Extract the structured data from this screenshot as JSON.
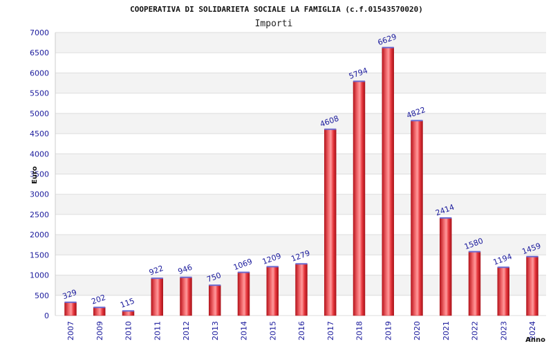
{
  "chart_data": {
    "type": "bar",
    "title": "COOPERATIVA DI SOLIDARIETA SOCIALE LA FAMIGLIA (c.f.01543570020)",
    "subtitle": "Importi",
    "xlabel": "Anno",
    "ylabel": "Euro",
    "ylim": [
      0,
      7000
    ],
    "yticks": [
      0,
      500,
      1000,
      1500,
      2000,
      2500,
      3000,
      3500,
      4000,
      4500,
      5000,
      5500,
      6000,
      6500,
      7000
    ],
    "categories": [
      "2007",
      "2009",
      "2010",
      "2011",
      "2012",
      "2013",
      "2014",
      "2015",
      "2016",
      "2017",
      "2018",
      "2019",
      "2020",
      "2021",
      "2022",
      "2023",
      "2024"
    ],
    "values": [
      329,
      202,
      115,
      922,
      946,
      750,
      1069,
      1209,
      1279,
      4608,
      5794,
      6629,
      4822,
      2414,
      1580,
      1194,
      1459
    ],
    "grid": true,
    "legend": "none",
    "colors": {
      "bar_main": "#e8393f",
      "bar_edge": "#b01e24",
      "bar_cap": "#6a6ad0",
      "label_text": "#1a1a9c",
      "band_alt": "#f3f3f3",
      "grid_line": "#dddddd"
    }
  }
}
